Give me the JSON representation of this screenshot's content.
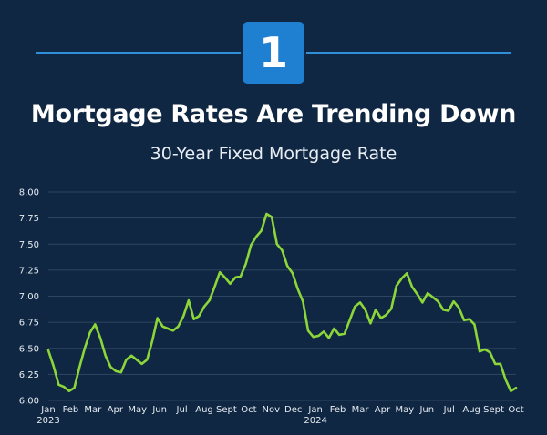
{
  "badge": {
    "number": "1"
  },
  "header": {
    "title": "Mortgage Rates Are Trending Down",
    "subtitle": "30-Year Fixed Mortgage Rate"
  },
  "colors": {
    "background": "#0f2742",
    "accent_line": "#2f8fd8",
    "badge": "#1f7fd1",
    "series_line": "#8cd63a",
    "grid": "#2e4660"
  },
  "chart_data": {
    "type": "line",
    "title": "Mortgage Rates Are Trending Down",
    "subtitle": "30-Year Fixed Mortgage Rate",
    "xlabel": "",
    "ylabel": "",
    "ylim": [
      6.0,
      8.0
    ],
    "yticks": [
      "8.00",
      "7.75",
      "7.50",
      "7.25",
      "7.00",
      "6.75",
      "6.50",
      "6.25",
      "6.00"
    ],
    "grid": true,
    "x_ticks": [
      {
        "label": "Jan",
        "sub": "2023"
      },
      {
        "label": "Feb"
      },
      {
        "label": "Mar"
      },
      {
        "label": "Apr"
      },
      {
        "label": "May"
      },
      {
        "label": "Jun"
      },
      {
        "label": "Jul"
      },
      {
        "label": "Aug"
      },
      {
        "label": "Sept"
      },
      {
        "label": "Oct"
      },
      {
        "label": "Nov"
      },
      {
        "label": "Dec"
      },
      {
        "label": "Jan",
        "sub": "2024"
      },
      {
        "label": "Feb"
      },
      {
        "label": "Mar"
      },
      {
        "label": "Apr"
      },
      {
        "label": "May"
      },
      {
        "label": "Jun"
      },
      {
        "label": "Jul"
      },
      {
        "label": "Aug"
      },
      {
        "label": "Sept"
      },
      {
        "label": "Oct"
      }
    ],
    "series": [
      {
        "values": [
          6.48,
          6.33,
          6.15,
          6.13,
          6.09,
          6.12,
          6.32,
          6.5,
          6.65,
          6.73,
          6.6,
          6.43,
          6.32,
          6.28,
          6.27,
          6.39,
          6.43,
          6.39,
          6.35,
          6.39,
          6.57,
          6.79,
          6.71,
          6.69,
          6.67,
          6.71,
          6.81,
          6.96,
          6.78,
          6.81,
          6.9,
          6.96,
          7.09,
          7.23,
          7.18,
          7.12,
          7.18,
          7.19,
          7.31,
          7.49,
          7.57,
          7.63,
          7.79,
          7.76,
          7.5,
          7.44,
          7.29,
          7.22,
          7.07,
          6.95,
          6.67,
          6.61,
          6.62,
          6.66,
          6.6,
          6.69,
          6.63,
          6.64,
          6.77,
          6.9,
          6.94,
          6.87,
          6.74,
          6.87,
          6.79,
          6.82,
          6.88,
          7.1,
          7.17,
          7.22,
          7.09,
          7.02,
          6.94,
          7.03,
          6.99,
          6.95,
          6.87,
          6.86,
          6.95,
          6.89,
          6.77,
          6.78,
          6.73,
          6.47,
          6.49,
          6.46,
          6.35,
          6.35,
          6.2,
          6.09,
          6.12
        ]
      }
    ]
  }
}
